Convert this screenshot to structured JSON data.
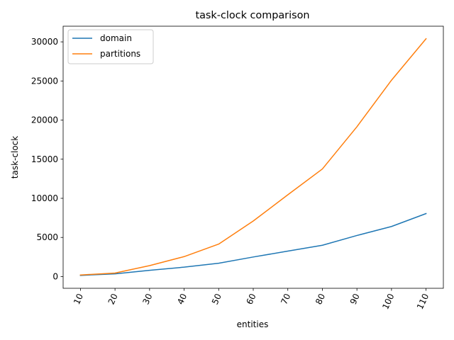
{
  "chart_data": {
    "type": "line",
    "title": "task-clock comparison",
    "xlabel": "entities",
    "ylabel": "task-clock",
    "x": [
      "10",
      "20",
      "30",
      "40",
      "50",
      "60",
      "70",
      "80",
      "90",
      "100",
      "110"
    ],
    "ylim": [
      -1500,
      32000
    ],
    "yticks": [
      0,
      5000,
      10000,
      15000,
      20000,
      25000,
      30000
    ],
    "grid": false,
    "legend_position": "top-left",
    "series": [
      {
        "name": "domain",
        "color": "#1f77b4",
        "values": [
          150,
          350,
          800,
          1200,
          1700,
          2500,
          3250,
          4000,
          5250,
          6400,
          8050
        ]
      },
      {
        "name": "partitions",
        "color": "#ff7f0e",
        "values": [
          200,
          450,
          1400,
          2550,
          4150,
          7100,
          10450,
          13750,
          19150,
          25100,
          30400
        ]
      }
    ]
  }
}
